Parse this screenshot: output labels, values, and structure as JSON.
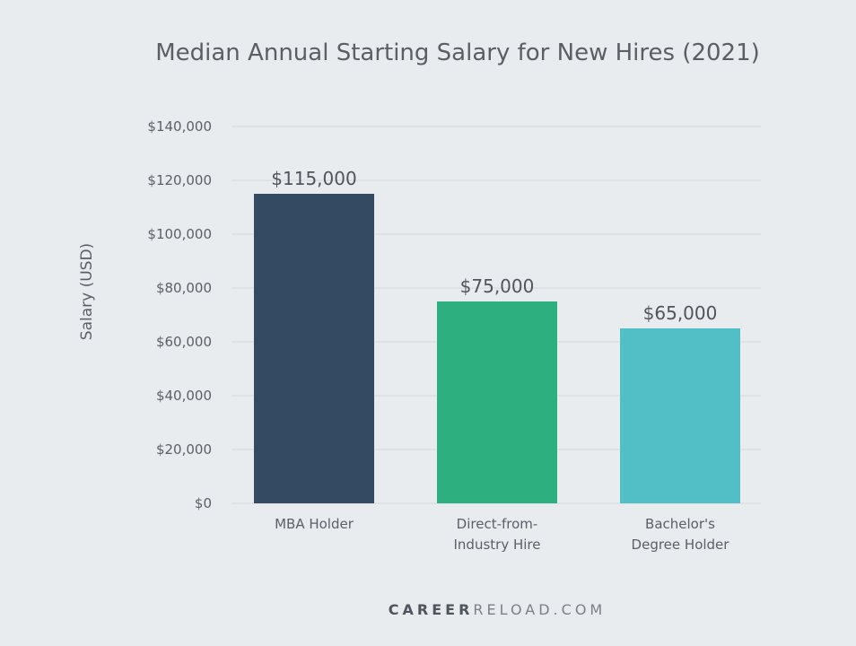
{
  "chart_data": {
    "type": "bar",
    "title": "Median Annual Starting Salary for New Hires (2021)",
    "xlabel": "",
    "ylabel": "Salary (USD)",
    "ylim": [
      0,
      140000
    ],
    "yticks": [
      "$0",
      "$20,000",
      "$40,000",
      "$60,000",
      "$80,000",
      "$100,000",
      "$120,000",
      "$140,000"
    ],
    "grid": true,
    "categories": [
      [
        "MBA Holder"
      ],
      [
        "Direct-from-",
        "Industry Hire"
      ],
      [
        "Bachelor's",
        "Degree Holder"
      ]
    ],
    "values": [
      115000,
      75000,
      65000
    ],
    "data_labels": [
      "$115,000",
      "$75,000",
      "$65,000"
    ],
    "colors": [
      "#344a63",
      "#2eaf80",
      "#52bfc6"
    ]
  },
  "watermark": {
    "bold": "CAREER",
    "light": "RELOAD.COM"
  }
}
